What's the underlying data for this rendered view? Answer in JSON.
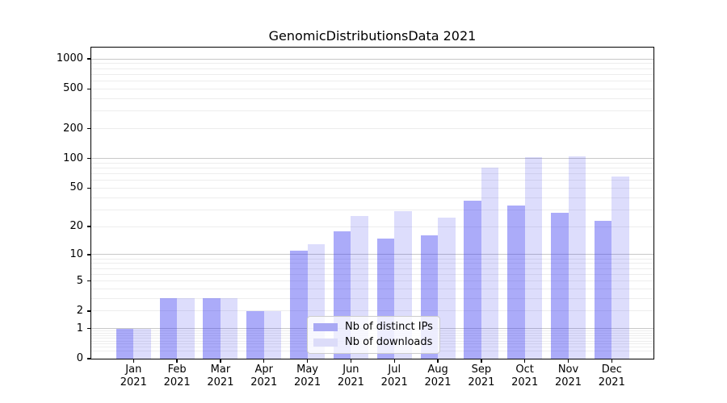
{
  "chart_data": {
    "type": "bar",
    "title": "GenomicDistributionsData 2021",
    "categories": [
      "Jan 2021",
      "Feb 2021",
      "Mar 2021",
      "Apr 2021",
      "May 2021",
      "Jun 2021",
      "Jul 2021",
      "Aug 2021",
      "Sep 2021",
      "Oct 2021",
      "Nov 2021",
      "Dec 2021"
    ],
    "series": [
      {
        "name": "Nb of distinct IPs",
        "color": "rgba(56,56,240,0.42)",
        "color_flat": "#a9a9f4",
        "values": [
          1,
          3,
          3,
          2,
          11,
          18,
          15,
          16,
          37,
          33,
          28,
          23
        ]
      },
      {
        "name": "Nb of downloads",
        "color": "rgba(56,56,240,0.17)",
        "color_flat": "#dcdcf9",
        "values": [
          1,
          3,
          3,
          2,
          13,
          26,
          29,
          25,
          80,
          103,
          105,
          65
        ]
      }
    ],
    "xlabel": "",
    "ylabel": "",
    "yscale": "log1p",
    "y_ticks": [
      0,
      1,
      2,
      5,
      10,
      20,
      50,
      100,
      200,
      500,
      1000
    ],
    "y_major_gridlines": [
      1,
      10,
      100,
      1000
    ],
    "ylim": [
      0,
      1300
    ],
    "grid": "horizontal major+minor",
    "legend_position": "lower center"
  },
  "colors": {
    "background": "#ffffff",
    "bar_ips": "#a9a9f4",
    "bar_downloads": "#dcdcf9",
    "grid_major": "#c8c8c8",
    "grid_minor": "#ededed",
    "spine": "#000000",
    "legend_border": "#cccccc"
  }
}
